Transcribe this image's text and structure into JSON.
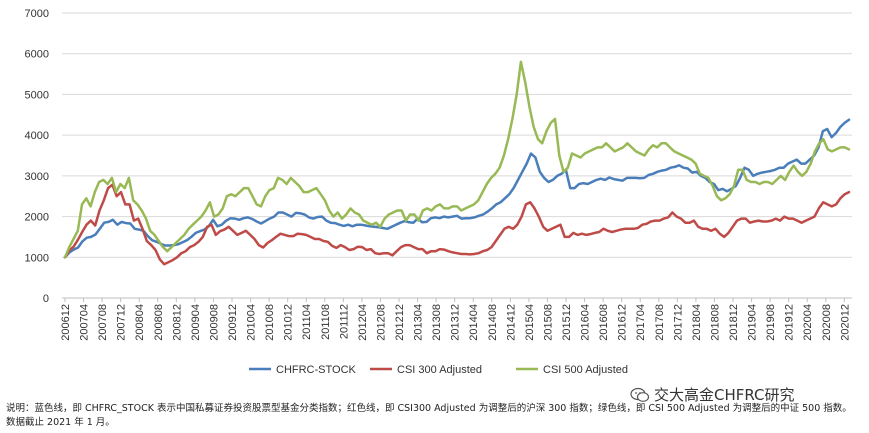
{
  "chart_data": {
    "type": "line",
    "title": "",
    "xlabel": "",
    "ylabel": "",
    "ylim": [
      0,
      7000
    ],
    "yticks": [
      0,
      1000,
      2000,
      3000,
      4000,
      5000,
      6000,
      7000
    ],
    "grid": "horizontal",
    "legend": "bottom",
    "x_tick_labels": [
      "200612",
      "200704",
      "200708",
      "200712",
      "200804",
      "200808",
      "200812",
      "200904",
      "200908",
      "200912",
      "201004",
      "201008",
      "201012",
      "201104",
      "201108",
      "201112",
      "201204",
      "201208",
      "201212",
      "201304",
      "201308",
      "201312",
      "201404",
      "201408",
      "201412",
      "201504",
      "201508",
      "201512",
      "201604",
      "201608",
      "201612",
      "201704",
      "201708",
      "201712",
      "201804",
      "201808",
      "201812",
      "201904",
      "201908",
      "201912",
      "202004",
      "202008",
      "202012"
    ],
    "x_start": "2006-12",
    "x_end": "2021-01",
    "series": [
      {
        "name": "CHFRC-STOCK",
        "color": "#4a7ebb",
        "values": [
          1000,
          1120,
          1190,
          1240,
          1390,
          1480,
          1500,
          1560,
          1700,
          1850,
          1870,
          1920,
          1800,
          1870,
          1840,
          1830,
          1700,
          1680,
          1650,
          1520,
          1420,
          1380,
          1330,
          1290,
          1290,
          1300,
          1320,
          1370,
          1420,
          1500,
          1600,
          1640,
          1680,
          1760,
          1920,
          1760,
          1800,
          1900,
          1960,
          1950,
          1920,
          1960,
          1980,
          1940,
          1880,
          1830,
          1890,
          1950,
          2000,
          2100,
          2100,
          2050,
          2000,
          2090,
          2080,
          2050,
          1980,
          1950,
          1990,
          2000,
          1900,
          1850,
          1840,
          1800,
          1770,
          1800,
          1760,
          1800,
          1800,
          1780,
          1760,
          1750,
          1740,
          1720,
          1700,
          1750,
          1800,
          1850,
          1890,
          1860,
          1850,
          1950,
          1860,
          1870,
          1960,
          1980,
          1960,
          2000,
          1980,
          2000,
          2020,
          1950,
          1960,
          1960,
          1980,
          2020,
          2050,
          2120,
          2200,
          2300,
          2350,
          2450,
          2550,
          2700,
          2900,
          3100,
          3300,
          3550,
          3450,
          3100,
          2950,
          2850,
          2900,
          3000,
          3050,
          3150,
          2700,
          2700,
          2800,
          2820,
          2800,
          2850,
          2900,
          2930,
          2900,
          2960,
          2920,
          2900,
          2880,
          2950,
          2950,
          2950,
          2940,
          2950,
          3020,
          3050,
          3100,
          3130,
          3150,
          3200,
          3220,
          3260,
          3200,
          3180,
          3080,
          3100,
          3000,
          2950,
          2850,
          2800,
          2650,
          2680,
          2620,
          2680,
          2750,
          2950,
          3200,
          3150,
          3000,
          3050,
          3080,
          3100,
          3120,
          3150,
          3200,
          3200,
          3300,
          3350,
          3400,
          3300,
          3300,
          3400,
          3500,
          3700,
          4100,
          4150,
          3950,
          4050,
          4200,
          4300,
          4380
        ]
      },
      {
        "name": "CSI 300 Adjusted",
        "color": "#be4b48",
        "values": [
          1000,
          1170,
          1260,
          1430,
          1620,
          1800,
          1900,
          1780,
          2150,
          2400,
          2700,
          2780,
          2500,
          2600,
          2300,
          2300,
          1900,
          1950,
          1700,
          1400,
          1300,
          1180,
          950,
          830,
          880,
          930,
          1000,
          1100,
          1150,
          1250,
          1300,
          1380,
          1500,
          1750,
          1800,
          1550,
          1640,
          1680,
          1750,
          1650,
          1550,
          1600,
          1650,
          1550,
          1450,
          1300,
          1240,
          1350,
          1420,
          1500,
          1580,
          1550,
          1520,
          1520,
          1580,
          1570,
          1550,
          1500,
          1450,
          1450,
          1400,
          1380,
          1280,
          1230,
          1300,
          1250,
          1180,
          1200,
          1260,
          1250,
          1180,
          1200,
          1100,
          1080,
          1100,
          1100,
          1050,
          1150,
          1250,
          1300,
          1300,
          1250,
          1200,
          1200,
          1100,
          1150,
          1150,
          1200,
          1190,
          1150,
          1120,
          1100,
          1080,
          1080,
          1070,
          1080,
          1100,
          1150,
          1180,
          1250,
          1400,
          1550,
          1700,
          1750,
          1700,
          1800,
          2000,
          2300,
          2350,
          2200,
          2000,
          1750,
          1650,
          1700,
          1750,
          1800,
          1500,
          1500,
          1600,
          1550,
          1580,
          1550,
          1570,
          1600,
          1620,
          1700,
          1650,
          1620,
          1650,
          1680,
          1700,
          1700,
          1700,
          1720,
          1800,
          1820,
          1880,
          1900,
          1900,
          1950,
          1980,
          2100,
          2000,
          1950,
          1850,
          1850,
          1900,
          1750,
          1700,
          1700,
          1650,
          1700,
          1580,
          1500,
          1600,
          1750,
          1900,
          1950,
          1950,
          1850,
          1880,
          1900,
          1880,
          1880,
          1900,
          1950,
          1900,
          2000,
          1950,
          1950,
          1900,
          1850,
          1900,
          1950,
          2000,
          2200,
          2350,
          2300,
          2250,
          2300,
          2450,
          2550,
          2600
        ]
      },
      {
        "name": "CSI 500 Adjusted",
        "color": "#98b954",
        "values": [
          1000,
          1250,
          1450,
          1650,
          2300,
          2450,
          2250,
          2600,
          2850,
          2900,
          2800,
          2950,
          2600,
          2800,
          2700,
          2950,
          2400,
          2300,
          2150,
          1950,
          1650,
          1550,
          1400,
          1250,
          1150,
          1250,
          1350,
          1450,
          1550,
          1700,
          1800,
          1900,
          2000,
          2150,
          2350,
          2000,
          2050,
          2200,
          2500,
          2550,
          2500,
          2600,
          2700,
          2700,
          2500,
          2300,
          2250,
          2500,
          2650,
          2700,
          2950,
          2900,
          2800,
          2950,
          2850,
          2750,
          2600,
          2600,
          2650,
          2700,
          2550,
          2400,
          2150,
          2000,
          2100,
          1950,
          2050,
          2200,
          2100,
          2050,
          1900,
          1850,
          1800,
          1850,
          1750,
          1950,
          2050,
          2100,
          2150,
          2150,
          1900,
          2050,
          2050,
          1900,
          2150,
          2200,
          2150,
          2250,
          2300,
          2200,
          2200,
          2250,
          2250,
          2150,
          2200,
          2250,
          2300,
          2400,
          2600,
          2800,
          2950,
          3050,
          3200,
          3500,
          3900,
          4400,
          5000,
          5800,
          5300,
          4700,
          4200,
          3900,
          3800,
          4100,
          4300,
          4400,
          3500,
          3100,
          3200,
          3550,
          3500,
          3450,
          3550,
          3600,
          3650,
          3700,
          3700,
          3800,
          3700,
          3600,
          3650,
          3700,
          3800,
          3700,
          3600,
          3550,
          3500,
          3650,
          3750,
          3700,
          3800,
          3800,
          3700,
          3600,
          3550,
          3500,
          3450,
          3400,
          3300,
          3050,
          3000,
          2950,
          2750,
          2500,
          2400,
          2450,
          2550,
          2750,
          3150,
          3150,
          2900,
          2850,
          2850,
          2800,
          2850,
          2850,
          2800,
          2900,
          3000,
          2900,
          3100,
          3250,
          3100,
          3000,
          3100,
          3300,
          3600,
          3800,
          3900,
          3650,
          3600,
          3650,
          3700,
          3700,
          3650
        ]
      }
    ]
  },
  "note": "说明：蓝色线，即 CHFRC_STOCK 表示中国私募证券投资股票型基金分类指数；红色线，即 CSI300 Adjusted 为调整后的沪深 300 指数；绿色线，即 CSI 500 Adjusted 为调整后的中证 500 指数。数据截止 2021 年 1 月。",
  "watermark": {
    "icon": "wechat-icon",
    "text": "交大高金CHFRC研究"
  }
}
